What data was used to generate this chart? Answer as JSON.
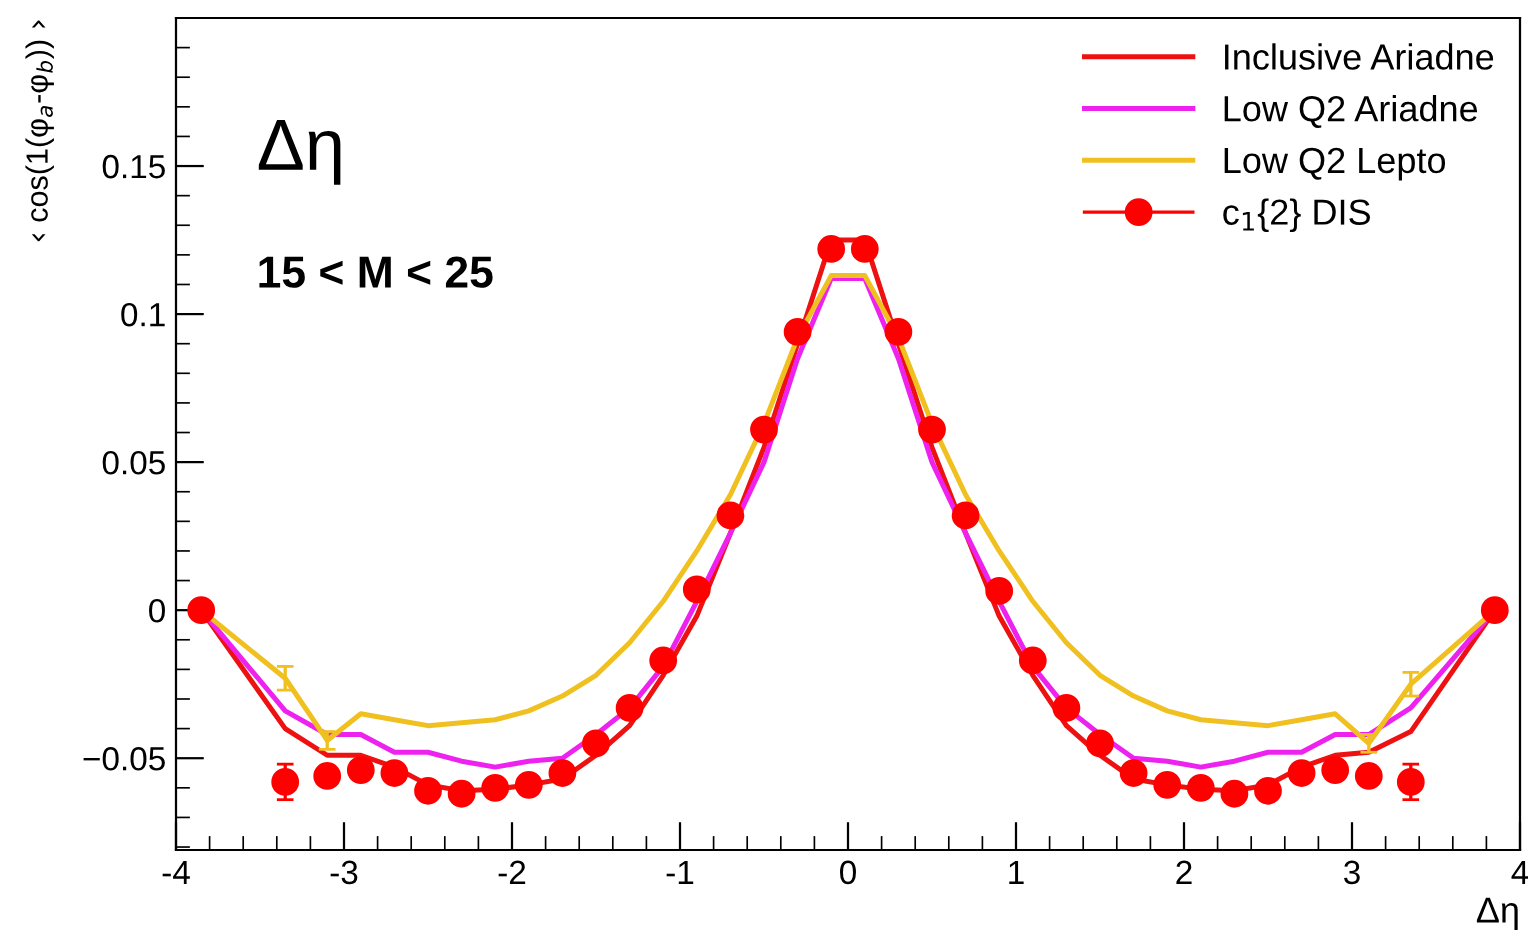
{
  "chart_data": {
    "type": "line",
    "xlabel": "Δη",
    "ylabel": "‹ cos(1(φ$_{a}$-φ$_{b}$)) ›",
    "annotations": [
      "Δη",
      "15 < M < 25"
    ],
    "x": [
      -3.85,
      -3.35,
      -3.1,
      -2.9,
      -2.7,
      -2.5,
      -2.3,
      -2.1,
      -1.9,
      -1.7,
      -1.5,
      -1.3,
      -1.1,
      -0.9,
      -0.7,
      -0.5,
      -0.3,
      -0.1,
      0.1,
      0.3,
      0.5,
      0.7,
      0.9,
      1.1,
      1.3,
      1.5,
      1.7,
      1.9,
      2.1,
      2.3,
      2.5,
      2.7,
      2.9,
      3.1,
      3.35,
      3.85
    ],
    "series": [
      {
        "name": "Inclusive Ariadne",
        "color": "#ee1111",
        "marker": "none",
        "values": [
          0,
          -0.04,
          -0.049,
          -0.049,
          -0.053,
          -0.059,
          -0.061,
          -0.0605,
          -0.059,
          -0.057,
          -0.049,
          -0.039,
          -0.022,
          -0.002,
          0.026,
          0.055,
          0.09,
          0.125,
          0.125,
          0.09,
          0.055,
          0.026,
          -0.002,
          -0.022,
          -0.039,
          -0.049,
          -0.057,
          -0.059,
          -0.0605,
          -0.061,
          -0.059,
          -0.053,
          -0.049,
          -0.048,
          -0.041,
          0
        ]
      },
      {
        "name": "Low Q2 Ariadne",
        "color": "#ee22ee",
        "marker": "none",
        "values": [
          0,
          -0.034,
          -0.042,
          -0.042,
          -0.048,
          -0.048,
          -0.051,
          -0.053,
          -0.051,
          -0.05,
          -0.042,
          -0.033,
          -0.019,
          0.003,
          0.026,
          0.05,
          0.085,
          0.112,
          0.112,
          0.085,
          0.05,
          0.026,
          0.003,
          -0.019,
          -0.033,
          -0.042,
          -0.05,
          -0.051,
          -0.053,
          -0.051,
          -0.048,
          -0.048,
          -0.042,
          -0.042,
          -0.033,
          0
        ]
      },
      {
        "name": "Low Q2 Lepto",
        "color": "#f0c020",
        "marker": "none",
        "values": [
          0,
          -0.023,
          -0.044,
          -0.035,
          -0.037,
          -0.039,
          -0.038,
          -0.037,
          -0.034,
          -0.029,
          -0.022,
          -0.011,
          0.003,
          0.02,
          0.039,
          0.063,
          0.092,
          0.113,
          0.113,
          0.092,
          0.063,
          0.039,
          0.02,
          0.003,
          -0.011,
          -0.022,
          -0.029,
          -0.034,
          -0.037,
          -0.038,
          -0.039,
          -0.037,
          -0.035,
          -0.045,
          -0.025,
          0
        ],
        "errors": [
          null,
          0.004,
          0.003,
          null,
          null,
          null,
          null,
          null,
          null,
          null,
          null,
          null,
          null,
          null,
          null,
          null,
          null,
          null,
          null,
          null,
          null,
          null,
          null,
          null,
          null,
          null,
          null,
          null,
          null,
          null,
          null,
          null,
          null,
          0.003,
          0.004,
          null
        ]
      },
      {
        "name": "c$_{1}${2} DIS",
        "color": "#ff0000",
        "type": "scatter",
        "marker": "circle",
        "values": [
          0,
          -0.058,
          -0.056,
          -0.054,
          -0.055,
          -0.061,
          -0.062,
          -0.06,
          -0.059,
          -0.055,
          -0.045,
          -0.033,
          -0.017,
          0.007,
          0.032,
          0.061,
          0.094,
          0.122,
          0.122,
          0.094,
          0.061,
          0.032,
          0.0065,
          -0.017,
          -0.033,
          -0.045,
          -0.055,
          -0.059,
          -0.06,
          -0.062,
          -0.061,
          -0.055,
          -0.054,
          -0.056,
          -0.058,
          0
        ],
        "errors": [
          null,
          0.006,
          0.003,
          null,
          null,
          null,
          null,
          null,
          null,
          null,
          null,
          null,
          null,
          null,
          null,
          null,
          null,
          null,
          null,
          null,
          null,
          null,
          null,
          null,
          null,
          null,
          null,
          null,
          null,
          null,
          null,
          null,
          null,
          0.003,
          0.006,
          null
        ]
      }
    ],
    "xlim": [
      -4,
      4
    ],
    "ylim": [
      -0.081,
      0.2
    ],
    "xticks": [
      -4,
      -3,
      -2,
      -1,
      0,
      1,
      2,
      3,
      4
    ],
    "yticks": [
      {
        "value": -0.05,
        "label": "−0.05"
      },
      0,
      0.05,
      0.1,
      0.15
    ],
    "legend": "top right",
    "grid": false
  }
}
